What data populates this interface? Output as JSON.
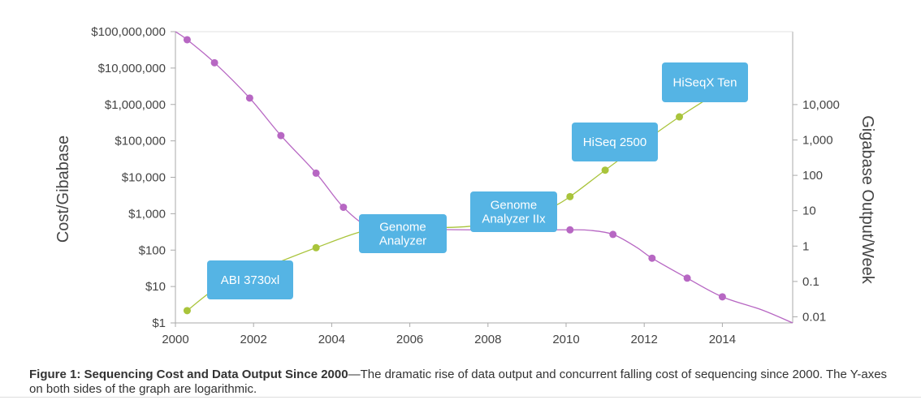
{
  "caption": {
    "title": "Figure 1: Sequencing Cost and Data Output Since 2000",
    "dash": "—",
    "text": "The dramatic rise of data output and concurrent falling cost of sequencing since 2000. The Y-axes on both sides of the graph are logarithmic."
  },
  "chart_data": {
    "type": "line",
    "x_axis": {
      "ticks": [
        2000,
        2002,
        2004,
        2006,
        2008,
        2010,
        2012,
        2014
      ],
      "range": [
        2000,
        2015.8
      ]
    },
    "y_left": {
      "label": "Cost/Gibabase",
      "scale": "log",
      "range": [
        1,
        100000000
      ],
      "ticks": [
        {
          "value": 1,
          "label": "$1"
        },
        {
          "value": 10,
          "label": "$10"
        },
        {
          "value": 100,
          "label": "$100"
        },
        {
          "value": 1000,
          "label": "$1,000"
        },
        {
          "value": 10000,
          "label": "$10,000"
        },
        {
          "value": 100000,
          "label": "$100,000"
        },
        {
          "value": 1000000,
          "label": "$1,000,000"
        },
        {
          "value": 10000000,
          "label": "$10,000,000"
        },
        {
          "value": 100000000,
          "label": "$100,000,000"
        }
      ]
    },
    "y_right": {
      "label": "Gigabase Output/Week",
      "scale": "log",
      "ticks": [
        {
          "value": 0.01,
          "label": "0.01"
        },
        {
          "value": 0.1,
          "label": "0.1"
        },
        {
          "value": 1,
          "label": "1"
        },
        {
          "value": 10,
          "label": "10"
        },
        {
          "value": 100,
          "label": "100"
        },
        {
          "value": 1000,
          "label": "1,000"
        },
        {
          "value": 10000,
          "label": "10,000"
        }
      ]
    },
    "series": [
      {
        "axis": "left",
        "color": "#b767c3",
        "curve_x": [
          2000.0,
          2000.3,
          2001.0,
          2001.9,
          2002.7,
          2003.6,
          2004.3,
          2005.0,
          2005.6,
          2006.5,
          2007.5,
          2008.5,
          2009.5,
          2010.1,
          2010.6,
          2011.2,
          2011.8,
          2012.2,
          2013.1,
          2014.0,
          2015.0,
          2015.8
        ],
        "curve_y": [
          100000000,
          60000000,
          14000000,
          1500000,
          140000,
          13000,
          1500,
          400,
          380,
          370,
          360,
          360,
          360,
          360,
          350,
          270,
          120,
          60,
          17,
          5.2,
          2.3,
          1
        ],
        "points_x": [
          2000.3,
          2001.0,
          2001.9,
          2002.7,
          2003.6,
          2004.3,
          2010.1,
          2011.2,
          2012.2,
          2013.1,
          2014.0
        ],
        "points_y": [
          60000000,
          14000000,
          1500000,
          140000,
          13000,
          1500,
          360,
          270,
          60,
          17,
          5.2
        ]
      },
      {
        "axis": "right",
        "color": "#a9c43b",
        "curve_x": [
          2000.3,
          2001.0,
          2001.6,
          2003.6,
          2005.0,
          2006.0,
          2007.5,
          2009.0,
          2009.6,
          2010.1,
          2011.0,
          2012.0,
          2012.9,
          2013.5
        ],
        "curve_y": [
          0.015,
          0.06,
          0.12,
          0.9,
          3.0,
          3.3,
          3.6,
          7.0,
          12,
          25,
          140,
          900,
          4500,
          12000
        ],
        "points_x": [
          2000.3,
          2003.6,
          2010.1,
          2011.0,
          2012.9
        ],
        "points_y": [
          0.015,
          0.9,
          25,
          140,
          4500
        ]
      }
    ],
    "annotations": [
      {
        "lines": [
          "ABI 3730xl"
        ]
      },
      {
        "lines": [
          "Genome",
          "Analyzer"
        ]
      },
      {
        "lines": [
          "Genome",
          "Analyzer IIx"
        ]
      },
      {
        "lines": [
          "HiSeq 2500"
        ]
      },
      {
        "lines": [
          "HiSeqX Ten"
        ]
      }
    ],
    "annotation_color": "#55b4e4",
    "grid": false
  }
}
